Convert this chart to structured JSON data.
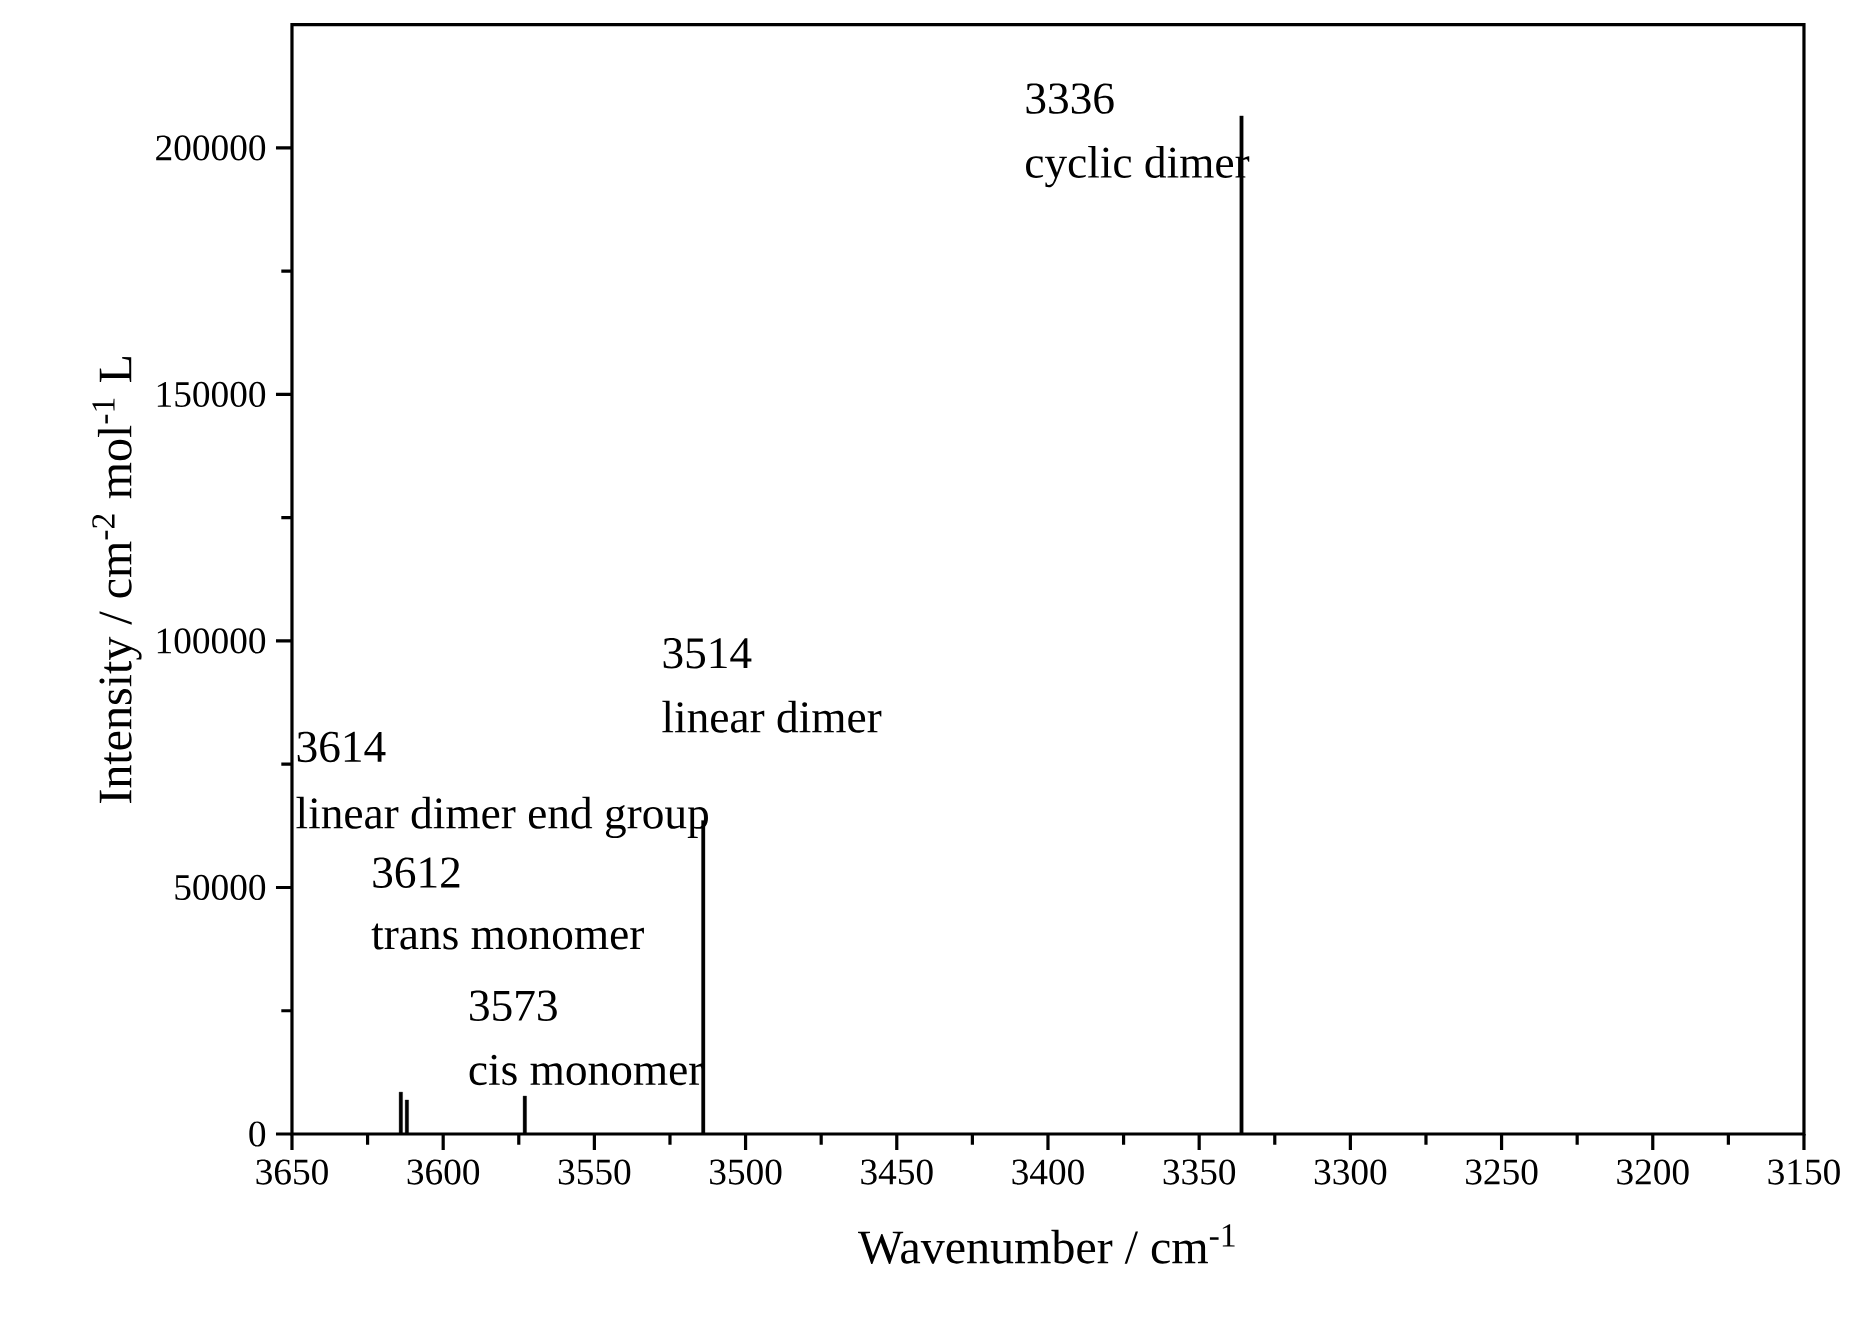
{
  "chart_data": {
    "type": "bar",
    "xlabel": "Wavenumber / cm$^{-1}$",
    "ylabel": "Intensity / cm$^{-2}$ mol$^{-1}$ L",
    "x": [
      3614,
      3612,
      3573,
      3514,
      3336
    ],
    "values": [
      8500,
      6900,
      7700,
      63600,
      206500
    ],
    "color": "#000000",
    "xlim": [
      3650,
      3150
    ],
    "xticks": [
      3650,
      3600,
      3550,
      3500,
      3450,
      3400,
      3350,
      3300,
      3250,
      3200,
      3150
    ],
    "ylim": [
      0,
      225000
    ],
    "yticks": [
      0,
      50000,
      100000,
      150000,
      200000
    ],
    "grid": false,
    "annotations": [
      "3336",
      "cyclic dimer",
      "3514",
      "linear dimer",
      "3614",
      "linear dimer end group",
      "3612",
      "trans monomer",
      "3573",
      "cis monomer"
    ]
  }
}
